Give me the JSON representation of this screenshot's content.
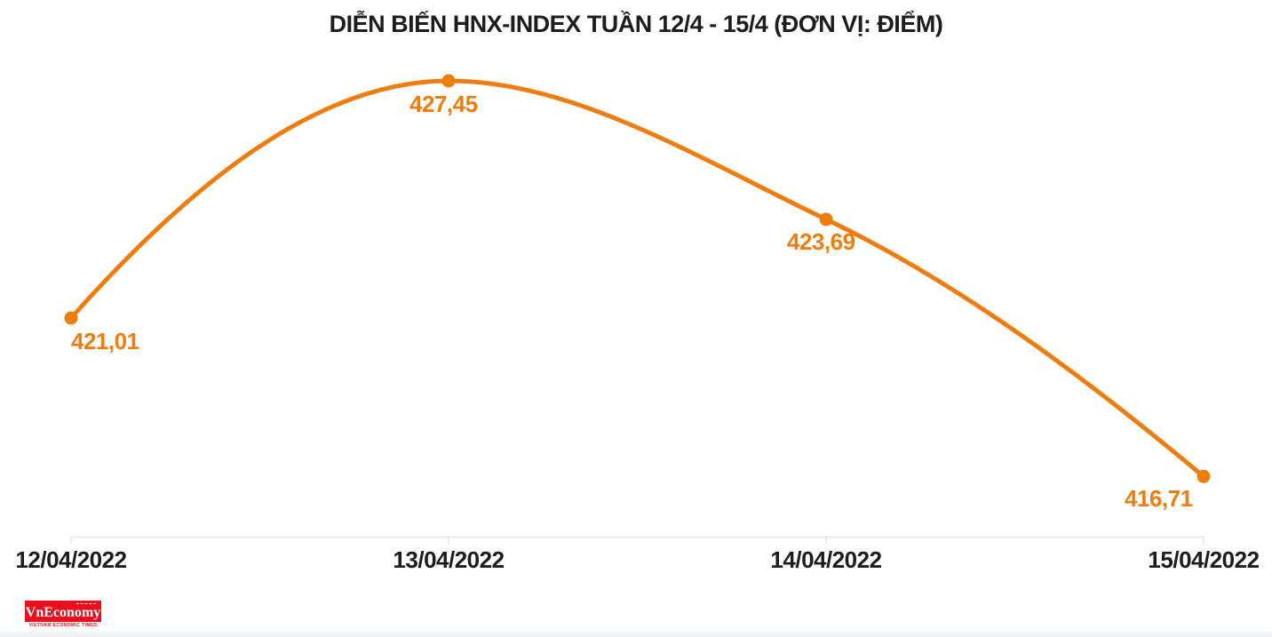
{
  "header": {
    "title": "DIỄN BIẾN HNX-INDEX TUẦN 12/4 - 15/4 (ĐƠN VỊ: ĐIỂM)"
  },
  "chart_data": {
    "type": "line",
    "title": "DIỄN BIẾN HNX-INDEX TUẦN 12/4 - 15/4 (ĐƠN VỊ: ĐIỂM)",
    "categories": [
      "12/04/2022",
      "13/04/2022",
      "14/04/2022",
      "15/04/2022"
    ],
    "series": [
      {
        "name": "HNX-Index",
        "values": [
          421.01,
          427.45,
          423.69,
          416.71
        ]
      }
    ],
    "point_labels": [
      "421,01",
      "427,45",
      "423,69",
      "416,71"
    ],
    "xlabel": "",
    "ylabel": "",
    "unit_label": "ĐIỂM",
    "ylim": [
      415.5,
      429.5
    ],
    "grid": false,
    "legend_position": "none",
    "marker": "circle",
    "colors": {
      "series": "#ee7d10",
      "point_label": "#ee7d10",
      "axis_line": "#e6e6e6",
      "tick": "#e6e6e6",
      "title_text": "#1d1d1d",
      "axis_label_text": "#1d1d1d"
    }
  },
  "footer": {
    "logo_text": "VnEconomy",
    "logo_tagline": "VIETNAM ECONOMIC TIMES",
    "logo_bg": "#e8101e",
    "logo_text_color": "#ffffff",
    "logo_tagline_color": "#e8101e"
  }
}
